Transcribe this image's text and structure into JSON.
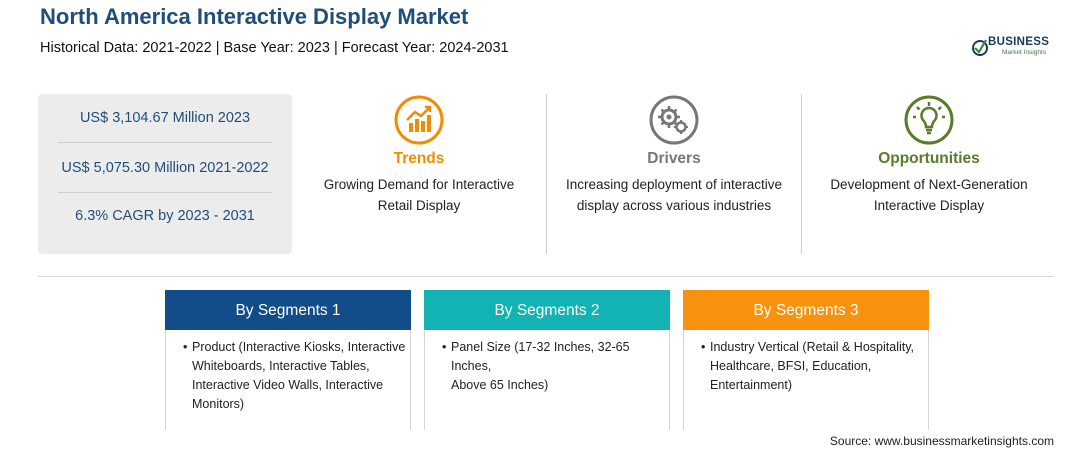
{
  "header": {
    "title": "North America Interactive Display Market",
    "subtitle": "Historical Data: 2021-2022 | Base Year: 2023 | Forecast Year: 2024-2031"
  },
  "logo": {
    "word": "BUSINESS",
    "sub": "Market Insights",
    "icon": "globe-check-icon"
  },
  "stats": [
    {
      "text": "US$ 3,104.67 Million 2023"
    },
    {
      "text": "US$ 5,075.30 Million 2021-2022"
    },
    {
      "text": "6.3% CAGR by 2023 - 2031"
    }
  ],
  "features": [
    {
      "title": "Trends",
      "desc_line1": "Growing Demand for Interactive",
      "desc_line2": "Retail Display",
      "color": "#f28c00",
      "icon": "trend-chart-icon"
    },
    {
      "title": "Drivers",
      "desc_line1": "Increasing deployment of interactive",
      "desc_line2": "display across various industries",
      "color": "#777777",
      "icon": "gears-icon"
    },
    {
      "title": "Opportunities",
      "desc_line1": "Development of Next-Generation",
      "desc_line2": "Interactive Display",
      "color": "#5b7a2a",
      "icon": "lightbulb-icon"
    }
  ],
  "segments": [
    {
      "title": "By Segments 1",
      "color": "#124d8a",
      "lines": [
        "Product (Interactive Kiosks, Interactive",
        "Whiteboards, Interactive Tables,",
        "Interactive Video Walls, Interactive",
        "Monitors)"
      ]
    },
    {
      "title": "By Segments 2",
      "color": "#14b3b3",
      "lines": [
        "Panel Size (17-32 Inches, 32-65 Inches,",
        "Above 65 Inches)"
      ]
    },
    {
      "title": "By Segments 3",
      "color": "#f7920e",
      "lines": [
        "Industry Vertical (Retail & Hospitality,",
        "Healthcare, BFSI, Education,",
        "Entertainment)"
      ]
    }
  ],
  "source": "Source: www.businessmarketinsights.com"
}
